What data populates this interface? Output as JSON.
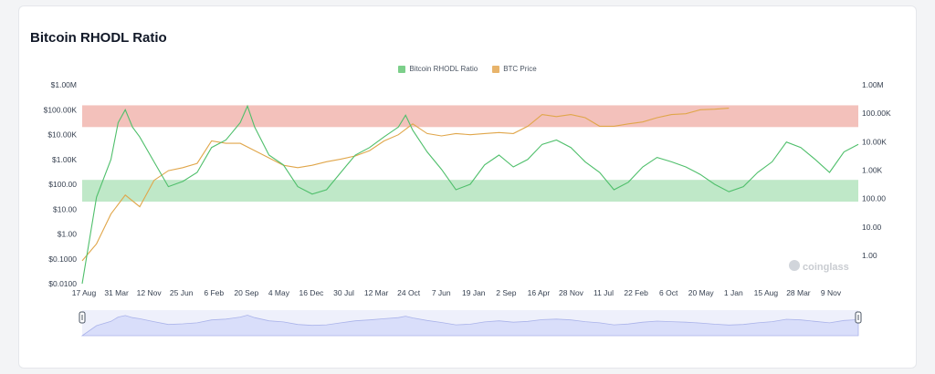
{
  "title": "Bitcoin RHODL Ratio",
  "watermark": "coinglass",
  "colors": {
    "rhodl": "#4fbf6b",
    "price": "#e0a64a",
    "red_band": "#f3c1bb",
    "green_band": "#bfe8c8",
    "navigator": "#d9defa",
    "navigator_line": "#aab3ea"
  },
  "chart_data": {
    "type": "line",
    "title": "Bitcoin RHODL Ratio",
    "x_ticks": [
      "17 Aug",
      "31 Mar",
      "12 Nov",
      "25 Jun",
      "6 Feb",
      "20 Sep",
      "4 May",
      "16 Dec",
      "30 Jul",
      "12 Mar",
      "24 Oct",
      "7 Jun",
      "19 Jan",
      "2 Sep",
      "16 Apr",
      "28 Nov",
      "11 Jul",
      "22 Feb",
      "6 Oct",
      "20 May",
      "1 Jan",
      "15 Aug",
      "28 Mar",
      "9 Nov"
    ],
    "y_left_ticks": [
      "$1.00M",
      "$100.00K",
      "$10.00K",
      "$1.00K",
      "$100.00",
      "$10.00",
      "$1.00",
      "$0.1000",
      "$0.0100"
    ],
    "y_left_log_range": [
      -2,
      6
    ],
    "y_right_ticks": [
      "1.00M",
      "100.00K",
      "10.00K",
      "1.00K",
      "100.00",
      "10.00",
      "1.00"
    ],
    "y_right_log_range": [
      -1,
      6
    ],
    "scale": "log",
    "bands": [
      {
        "name": "top",
        "axis": "left",
        "from": 20000,
        "to": 150000,
        "color": "red"
      },
      {
        "name": "bottom",
        "axis": "left",
        "from": 20,
        "to": 150,
        "color": "green"
      }
    ],
    "legend_position": "top-center",
    "series": [
      {
        "name": "Bitcoin RHODL Ratio",
        "axis": "left",
        "points": [
          [
            0,
            0.01
          ],
          [
            1,
            30
          ],
          [
            2,
            1000
          ],
          [
            2.5,
            30000
          ],
          [
            3,
            100000
          ],
          [
            3.5,
            20000
          ],
          [
            4,
            8000
          ],
          [
            5,
            800
          ],
          [
            6,
            80
          ],
          [
            7,
            130
          ],
          [
            8,
            300
          ],
          [
            9,
            3000
          ],
          [
            10,
            6000
          ],
          [
            11,
            30000
          ],
          [
            11.5,
            140000
          ],
          [
            12,
            20000
          ],
          [
            13,
            1500
          ],
          [
            14,
            600
          ],
          [
            15,
            80
          ],
          [
            16,
            40
          ],
          [
            17,
            60
          ],
          [
            18,
            300
          ],
          [
            19,
            1500
          ],
          [
            20,
            3000
          ],
          [
            21,
            8000
          ],
          [
            22,
            20000
          ],
          [
            22.5,
            60000
          ],
          [
            23,
            15000
          ],
          [
            24,
            2000
          ],
          [
            25,
            400
          ],
          [
            26,
            60
          ],
          [
            27,
            100
          ],
          [
            28,
            600
          ],
          [
            29,
            1500
          ],
          [
            30,
            500
          ],
          [
            31,
            1000
          ],
          [
            32,
            4000
          ],
          [
            33,
            6000
          ],
          [
            34,
            3000
          ],
          [
            35,
            800
          ],
          [
            36,
            300
          ],
          [
            37,
            60
          ],
          [
            38,
            120
          ],
          [
            39,
            500
          ],
          [
            40,
            1200
          ],
          [
            41,
            800
          ],
          [
            42,
            500
          ],
          [
            43,
            250
          ],
          [
            44,
            100
          ],
          [
            45,
            50
          ],
          [
            46,
            80
          ],
          [
            47,
            300
          ],
          [
            48,
            800
          ],
          [
            49,
            5000
          ],
          [
            50,
            3000
          ],
          [
            51,
            1000
          ],
          [
            52,
            300
          ],
          [
            53,
            2000
          ],
          [
            54,
            4000
          ]
        ]
      },
      {
        "name": "BTC Price",
        "axis": "right",
        "points": [
          [
            0,
            0.06
          ],
          [
            1,
            0.3
          ],
          [
            2,
            5
          ],
          [
            3,
            30
          ],
          [
            4,
            10
          ],
          [
            5,
            120
          ],
          [
            6,
            300
          ],
          [
            7,
            400
          ],
          [
            8,
            600
          ],
          [
            9,
            5000
          ],
          [
            10,
            4000
          ],
          [
            11,
            4000
          ],
          [
            12,
            2000
          ],
          [
            13,
            1000
          ],
          [
            14,
            500
          ],
          [
            15,
            400
          ],
          [
            16,
            500
          ],
          [
            17,
            700
          ],
          [
            18,
            900
          ],
          [
            19,
            1200
          ],
          [
            20,
            2000
          ],
          [
            21,
            5000
          ],
          [
            22,
            9000
          ],
          [
            23,
            25000
          ],
          [
            24,
            10000
          ],
          [
            25,
            8000
          ],
          [
            26,
            10000
          ],
          [
            27,
            9000
          ],
          [
            28,
            10000
          ],
          [
            29,
            11000
          ],
          [
            30,
            10000
          ],
          [
            31,
            20000
          ],
          [
            32,
            60000
          ],
          [
            33,
            50000
          ],
          [
            34,
            60000
          ],
          [
            35,
            45000
          ],
          [
            36,
            20000
          ],
          [
            37,
            20000
          ],
          [
            38,
            25000
          ],
          [
            39,
            30000
          ],
          [
            40,
            45000
          ],
          [
            41,
            60000
          ],
          [
            42,
            65000
          ],
          [
            43,
            95000
          ],
          [
            44,
            100000
          ],
          [
            45,
            110000
          ]
        ]
      }
    ]
  }
}
